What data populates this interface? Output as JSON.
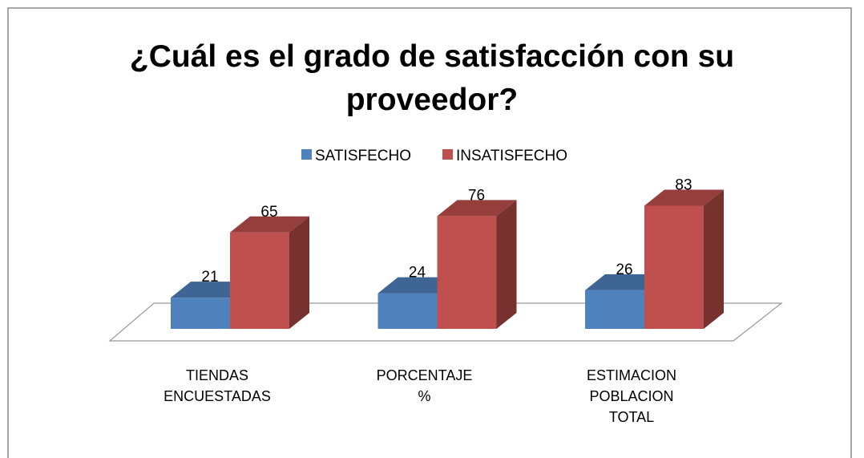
{
  "chart_data": {
    "type": "bar3d",
    "title": "¿Cuál es el grado de satisfacción con su proveedor?",
    "categories": [
      "TIENDAS\nENCUESTADAS",
      "PORCENTAJE\n%",
      "ESTIMACION\nPOBLACION\nTOTAL"
    ],
    "series": [
      {
        "name": "SATISFECHO",
        "color": "#4f81bd",
        "values": [
          21,
          24,
          26
        ]
      },
      {
        "name": "INSATISFECHO",
        "color": "#c0504d",
        "values": [
          65,
          76,
          83
        ]
      }
    ],
    "legend": "top"
  }
}
